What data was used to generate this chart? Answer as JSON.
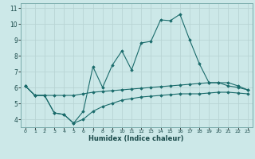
{
  "xlabel": "Humidex (Indice chaleur)",
  "xlim": [
    -0.5,
    23.5
  ],
  "ylim": [
    3.5,
    11.3
  ],
  "xticks": [
    0,
    1,
    2,
    3,
    4,
    5,
    6,
    7,
    8,
    9,
    10,
    11,
    12,
    13,
    14,
    15,
    16,
    17,
    18,
    19,
    20,
    21,
    22,
    23
  ],
  "yticks": [
    4,
    5,
    6,
    7,
    8,
    9,
    10,
    11
  ],
  "bg_color": "#cce8e8",
  "line_color": "#1a6b6b",
  "grid_color": "#b8d4d4",
  "series": [
    [
      6.1,
      5.5,
      5.5,
      4.4,
      4.3,
      3.75,
      4.5,
      7.3,
      6.0,
      7.4,
      8.3,
      7.1,
      8.8,
      8.9,
      10.25,
      10.2,
      10.6,
      9.0,
      7.5,
      6.3,
      6.3,
      6.1,
      6.0,
      5.85
    ],
    [
      6.1,
      5.5,
      5.5,
      5.5,
      5.5,
      5.5,
      5.6,
      5.7,
      5.75,
      5.8,
      5.85,
      5.9,
      5.95,
      6.0,
      6.05,
      6.1,
      6.15,
      6.2,
      6.25,
      6.3,
      6.3,
      6.3,
      6.1,
      5.85
    ],
    [
      6.1,
      5.5,
      5.5,
      4.4,
      4.3,
      3.75,
      4.0,
      4.5,
      4.8,
      5.0,
      5.2,
      5.3,
      5.4,
      5.45,
      5.5,
      5.55,
      5.6,
      5.6,
      5.6,
      5.65,
      5.7,
      5.7,
      5.65,
      5.6
    ]
  ]
}
